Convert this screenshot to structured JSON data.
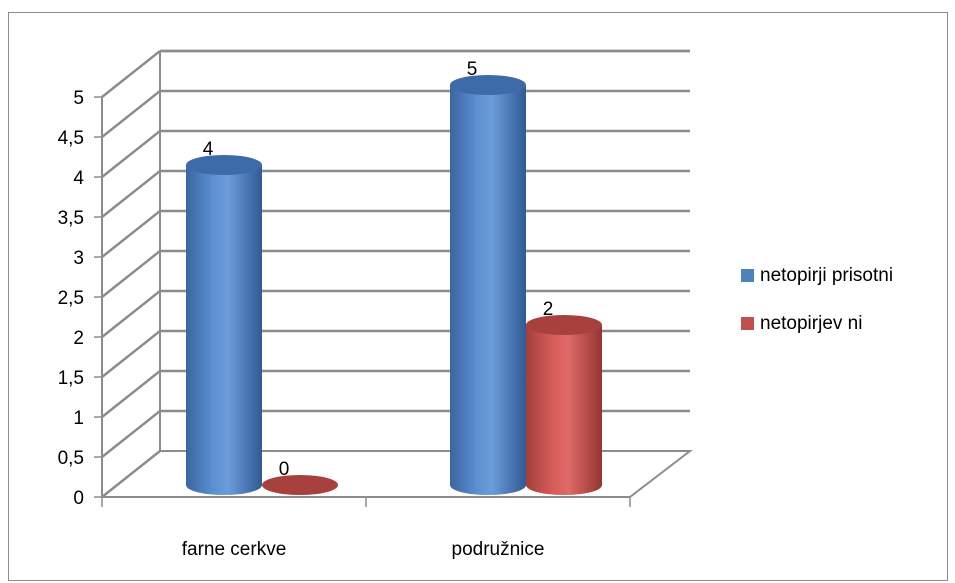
{
  "chart_data": {
    "type": "bar",
    "style": "3d-cylinder",
    "categories": [
      "farne cerkve",
      "podružnice"
    ],
    "series": [
      {
        "name": "netopirji prisotni",
        "values": [
          4,
          5
        ],
        "color": "#4f81bd"
      },
      {
        "name": "netopirjev ni",
        "values": [
          0,
          2
        ],
        "color": "#c0504d"
      }
    ],
    "y_ticks": [
      "0",
      "0,5",
      "1",
      "1,5",
      "2",
      "2,5",
      "3",
      "3,5",
      "4",
      "4,5",
      "5"
    ],
    "ylim": [
      0,
      5
    ],
    "grid": true,
    "legend_position": "right",
    "data_labels": true
  }
}
